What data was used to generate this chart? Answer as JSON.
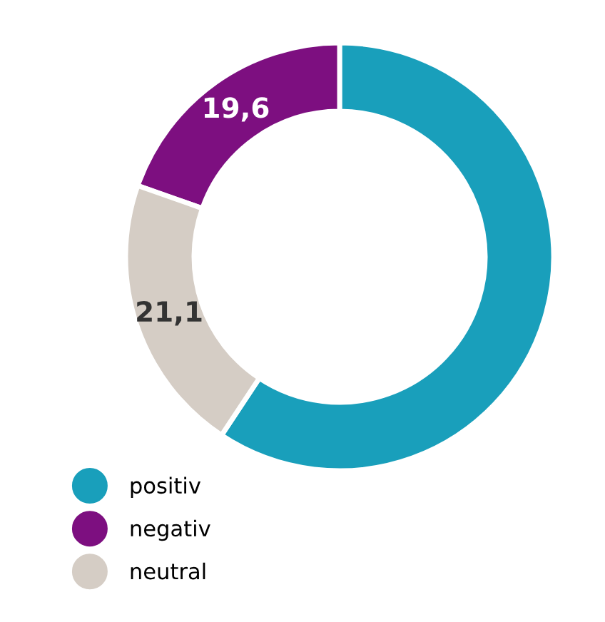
{
  "chart_data": {
    "type": "donut",
    "categories": [
      "positiv",
      "negativ",
      "neutral"
    ],
    "values": [
      59.3,
      19.6,
      21.1
    ],
    "colors": [
      "#199fbb",
      "#7d0f80",
      "#d5cdc5"
    ],
    "value_labels": [
      null,
      "19,6",
      "21,1"
    ],
    "legend": "bottom left"
  }
}
